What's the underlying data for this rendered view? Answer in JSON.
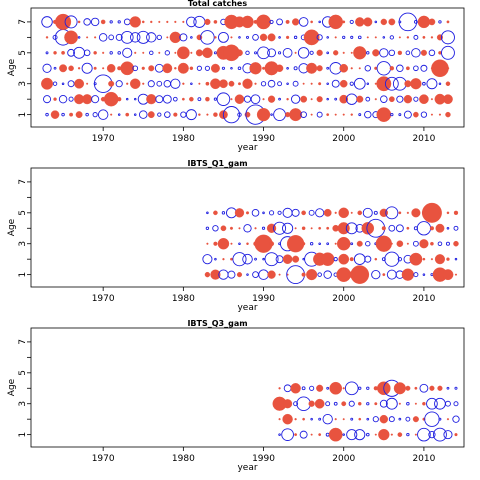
{
  "figure": {
    "description_free": true,
    "marker_style": "bubble residual plot: filled circles = positive, open circles = negative"
  },
  "chart_data": [
    {
      "type": "scatter",
      "title": "Total catches",
      "xlabel": "year",
      "ylabel": "Age",
      "xlim": [
        1961,
        2015
      ],
      "ylim": [
        0.2,
        7.9
      ],
      "x_ticks": [
        1970,
        1980,
        1990,
        2000,
        2010
      ],
      "y_ticks": [
        1,
        3,
        5,
        7
      ],
      "ages": [
        1,
        2,
        3,
        4,
        5,
        6,
        7
      ],
      "years": [
        1963,
        2013
      ],
      "colors": {
        "positive": "#E8533F",
        "negative": "#1F1FE0"
      }
    },
    {
      "type": "scatter",
      "title": "IBTS_Q1_gam",
      "xlabel": "year",
      "ylabel": "Age",
      "xlim": [
        1961,
        2015
      ],
      "ylim": [
        0.2,
        7.9
      ],
      "x_ticks": [
        1970,
        1980,
        1990,
        2000,
        2010
      ],
      "y_ticks": [
        1,
        3,
        5,
        7
      ],
      "ages": [
        1,
        2,
        3,
        4,
        5
      ],
      "years": [
        1983,
        2014
      ],
      "colors": {
        "positive": "#E8533F",
        "negative": "#1F1FE0"
      }
    },
    {
      "type": "scatter",
      "title": "IBTS_Q3_gam",
      "xlabel": "year",
      "ylabel": "Age",
      "xlim": [
        1961,
        2015
      ],
      "ylim": [
        0.2,
        7.9
      ],
      "x_ticks": [
        1970,
        1980,
        1990,
        2000,
        2010
      ],
      "y_ticks": [
        1,
        3,
        5,
        7
      ],
      "ages": [
        1,
        2,
        3,
        4
      ],
      "years": [
        1992,
        2014
      ],
      "colors": {
        "positive": "#E8533F",
        "negative": "#1F1FE0"
      }
    }
  ]
}
